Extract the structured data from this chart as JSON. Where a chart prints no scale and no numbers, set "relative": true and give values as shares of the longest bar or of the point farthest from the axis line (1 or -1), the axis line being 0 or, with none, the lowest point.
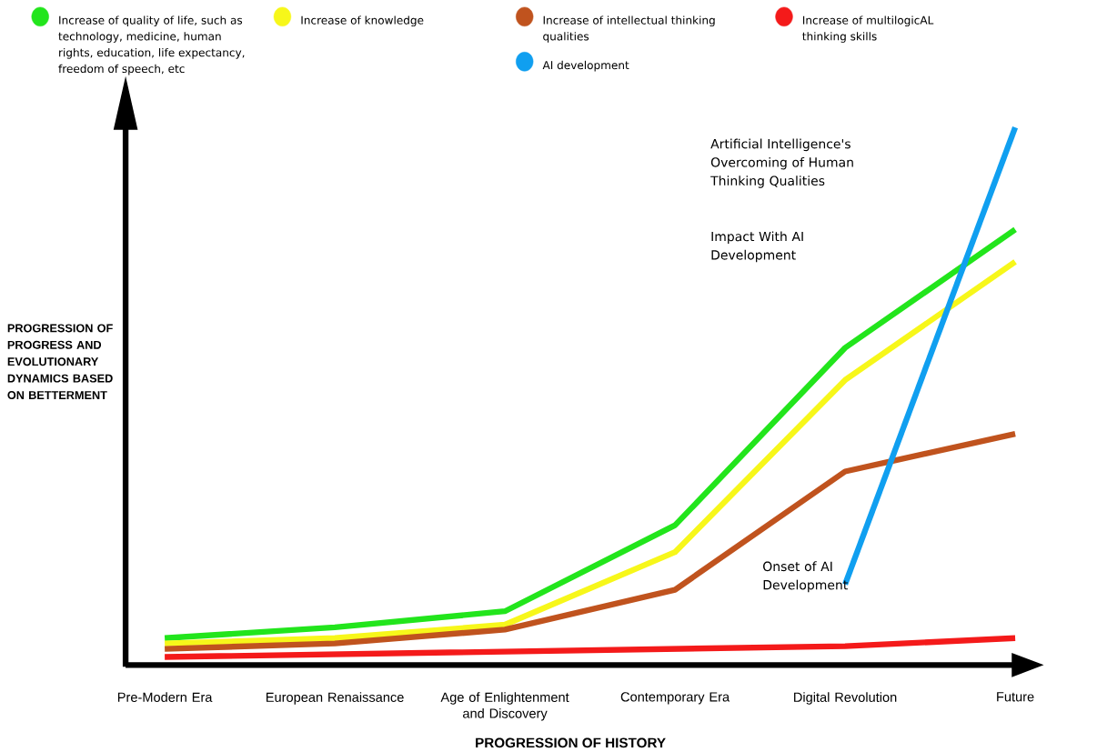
{
  "chart_data": {
    "type": "line",
    "relative": true,
    "legend": "top",
    "marker": "none",
    "line_style": "solid",
    "xlabel": "PROGRESSION OF HISTORY",
    "ylabel": "PROGRESSION OF PROGRESS AND EVOLUTIONARY DYNAMICS BASED ON BETTERMENT",
    "categories": [
      "Pre-Modern Era",
      "European Renaissance",
      "Age of Enlightenment and Discovery",
      "Contemporary Era",
      "Digital Revolution",
      "Future"
    ],
    "series": [
      {
        "name": "Increase of quality of life, such as technology, medicine, human rights, education, life expectancy, freedom of speech, etc",
        "color": "#22e51c",
        "values": [
          0.05,
          0.07,
          0.1,
          0.26,
          0.59,
          0.81
        ]
      },
      {
        "name": "Increase of knowledge",
        "color": "#f7f71a",
        "values": [
          0.04,
          0.05,
          0.075,
          0.21,
          0.53,
          0.75
        ]
      },
      {
        "name": "Increase of intellectual thinking qualities",
        "color": "#c0531e",
        "values": [
          0.03,
          0.04,
          0.066,
          0.14,
          0.36,
          0.43
        ]
      },
      {
        "name": "Increase of multilogicAL thinking skills",
        "color": "#f41a1a",
        "values": [
          0.015,
          0.02,
          0.025,
          0.03,
          0.035,
          0.05
        ]
      },
      {
        "name": "AI development",
        "color": "#109ff0",
        "values": [
          null,
          null,
          null,
          null,
          0.15,
          1.0
        ]
      }
    ],
    "annotations": [
      "Artificial Intelligence's Overcoming of Human Thinking Qualities",
      "Impact With AI Development",
      "Onset of AI Development"
    ]
  }
}
